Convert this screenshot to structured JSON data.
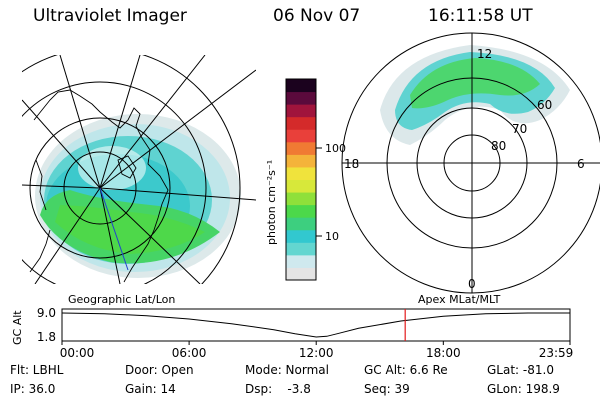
{
  "header": {
    "instrument": "Ultraviolet Imager",
    "date": "06 Nov 07",
    "time": "16:11:58 UT"
  },
  "left_panel": {
    "caption": "Geographic Lat/Lon"
  },
  "right_panel": {
    "caption": "Apex  MLat/MLT",
    "mlt_labels": [
      "12",
      "18",
      "6",
      "0"
    ],
    "lat_labels": [
      "60",
      "70",
      "80"
    ]
  },
  "colorbar": {
    "unit_label": "photon cm⁻²s⁻¹",
    "ticks": [
      "100",
      "10"
    ],
    "colors": [
      "#e4e4e4",
      "#cfe9ee",
      "#63d6d0",
      "#32c8cf",
      "#3dcf7f",
      "#4cd84a",
      "#8fe03a",
      "#d7e83a",
      "#f0e33c",
      "#f4b33a",
      "#f07a33",
      "#e9403a",
      "#d42a2a",
      "#a0143c",
      "#5b0a3c",
      "#1b021e"
    ]
  },
  "chart_data": {
    "type": "line",
    "title": "GC Alt",
    "x_ticks": [
      "00:00",
      "06:00",
      "12:00",
      "18:00",
      "23:59"
    ],
    "y_ticks": [
      "9.0",
      "1.8"
    ],
    "ylim": [
      1.8,
      9.0
    ],
    "x": [
      0,
      2,
      4,
      6,
      8,
      10,
      11,
      12,
      12.5,
      13,
      14,
      16,
      18,
      20,
      22,
      23.98
    ],
    "y": [
      9.0,
      8.8,
      8.2,
      7.2,
      5.8,
      4.0,
      2.8,
      1.8,
      2.0,
      2.8,
      4.4,
      6.6,
      8.0,
      8.8,
      9.0,
      9.0
    ],
    "marker_x": 16.2,
    "marker_color": "#e31a1c"
  },
  "footer": {
    "flt": "Flt: LBHL",
    "ip": "IP: 36.0",
    "door": "Door: Open",
    "gain": "Gain: 14",
    "mode": "Mode: Normal",
    "dsp": "Dsp:    -3.8",
    "gcalt": "GC Alt: 6.6 Re",
    "seq": "Seq: 39",
    "glat": "GLat: -81.0",
    "glon": "GLon: 198.9"
  }
}
